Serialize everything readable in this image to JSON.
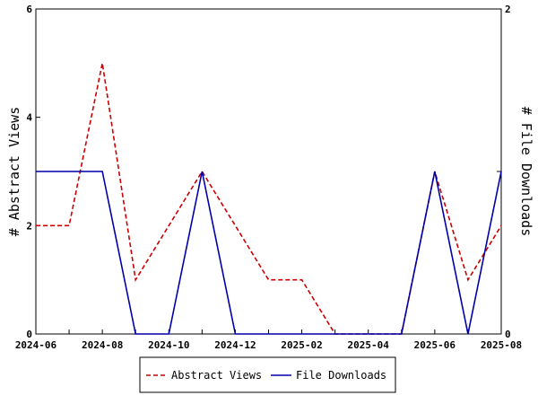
{
  "chart_data": {
    "type": "line",
    "title": "",
    "xlabel": "",
    "ylabel_left": "# Abstract Views",
    "ylabel_right": "# File Downloads",
    "x": [
      "2024-06",
      "2024-07",
      "2024-08",
      "2024-09",
      "2024-10",
      "2024-11",
      "2024-12",
      "2025-01",
      "2025-02",
      "2025-03",
      "2025-04",
      "2025-05",
      "2025-06",
      "2025-07",
      "2025-08"
    ],
    "x_tick_labels": [
      "2024-06",
      "2024-08",
      "2024-10",
      "2024-12",
      "2025-02",
      "2025-04",
      "2025-06",
      "2025-08"
    ],
    "y_left_range": [
      0,
      6
    ],
    "y_left_ticks": [
      "0",
      "2",
      "4",
      "6"
    ],
    "y_right_range": [
      0,
      2
    ],
    "y_right_ticks": [
      "0",
      "1",
      "2"
    ],
    "y_right_tick_labels": [
      "0",
      "",
      "2"
    ],
    "grid": false,
    "legend_position": "bottom",
    "series": [
      {
        "name": "Abstract Views",
        "axis": "left",
        "color": "#cc0000",
        "dash": "dashed",
        "values": [
          2,
          2,
          5,
          1,
          2,
          3,
          2,
          1,
          1,
          0,
          0,
          0,
          3,
          1,
          2
        ]
      },
      {
        "name": "File Downloads",
        "axis": "right",
        "color": "#0000aa",
        "dash": "solid",
        "values": [
          1,
          1,
          1,
          0,
          0,
          1,
          0,
          0,
          0,
          0,
          0,
          0,
          1,
          0,
          1
        ]
      }
    ]
  }
}
